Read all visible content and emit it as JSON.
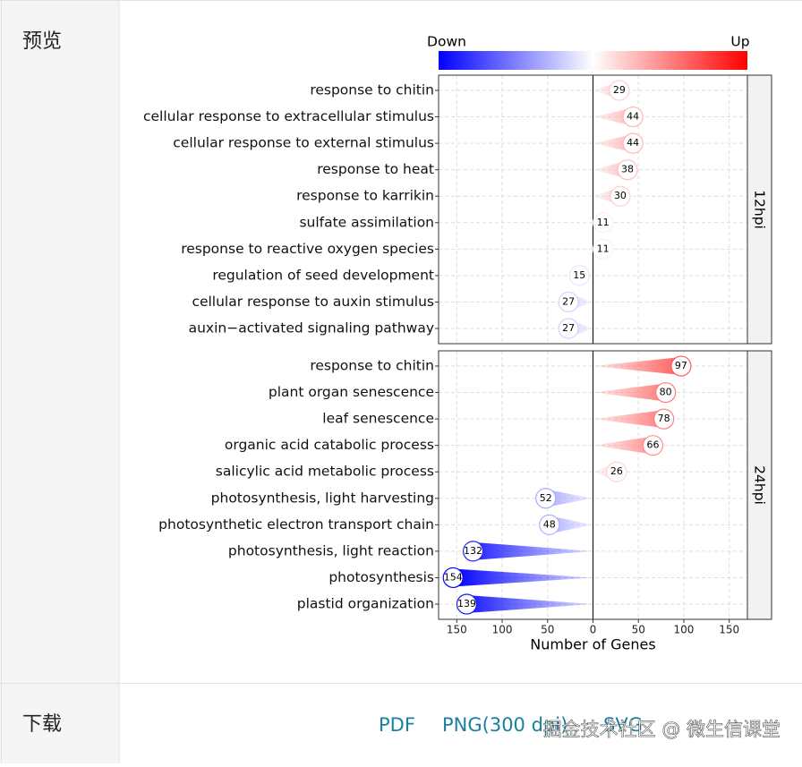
{
  "sidebar": {
    "preview": "预览",
    "download": "下载"
  },
  "downloads": [
    "PDF",
    "PNG(300 dpi)",
    "SVG"
  ],
  "watermark": "掘金技术社区 @ 微生信课堂",
  "chart_data": {
    "type": "comet",
    "xlabel": "Number of Genes",
    "xlim": [
      -170,
      170
    ],
    "xticks": [
      {
        "value": -150,
        "label": "150"
      },
      {
        "value": -100,
        "label": "100"
      },
      {
        "value": -50,
        "label": "50"
      },
      0,
      50,
      100,
      150
    ],
    "grid": true,
    "legend": {
      "low_label": "Down",
      "high_label": "Up",
      "low_color": "#0000ff",
      "mid_color": "#ffffff",
      "high_color": "#ff0000"
    },
    "panels": [
      {
        "name": "12hpi",
        "categories": [
          "response to chitin",
          "cellular response to extracellular stimulus",
          "cellular response to external stimulus",
          "response to heat",
          "response to karrikin",
          "sulfate assimilation",
          "response to reactive oxygen species",
          "regulation of seed development",
          "cellular response to auxin stimulus",
          "auxin−activated signaling pathway"
        ],
        "values": [
          29,
          44,
          44,
          38,
          30,
          11,
          11,
          -15,
          -27,
          -27
        ],
        "value_labels": [
          "29",
          "44",
          "44",
          "38",
          "30",
          "11",
          "11",
          "15",
          "27",
          "27"
        ]
      },
      {
        "name": "24hpi",
        "categories": [
          "response to chitin",
          "plant organ senescence",
          "leaf senescence",
          "organic acid catabolic process",
          "salicylic acid metabolic process",
          "photosynthesis, light harvesting",
          "photosynthetic electron transport chain",
          "photosynthesis, light reaction",
          "photosynthesis",
          "plastid organization"
        ],
        "values": [
          97,
          80,
          78,
          66,
          26,
          -52,
          -48,
          -132,
          -154,
          -139
        ],
        "value_labels": [
          "97",
          "80",
          "78",
          "66",
          "26",
          "52",
          "48",
          "132",
          "154",
          "139"
        ]
      }
    ]
  }
}
